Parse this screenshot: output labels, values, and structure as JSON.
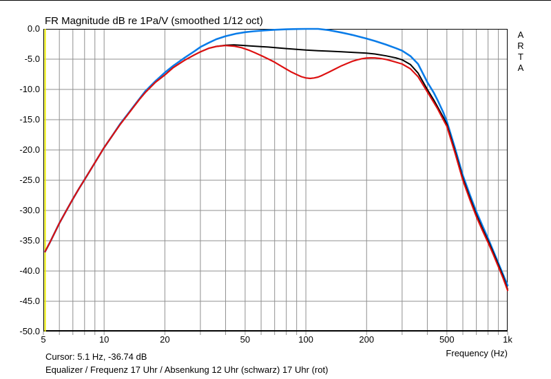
{
  "title": "FR Magnitude dB re 1Pa/V (smoothed 1/12 oct)",
  "branding": {
    "name": "ARTA",
    "letters": [
      "A",
      "R",
      "T",
      "A"
    ]
  },
  "status": {
    "cursor": "Cursor: 5.1 Hz, -36.74 dB"
  },
  "caption": "Equalizer / Frequenz 17 Uhr / Absenkung 12 Uhr (schwarz) 17 Uhr (rot)",
  "colors": {
    "background": "#ffffff",
    "grid": "#8f8f8f",
    "border": "#000000",
    "cursor": "#efef00",
    "blue": "#0a7ce8",
    "black": "#000000",
    "red": "#dd1111"
  },
  "axes": {
    "x": {
      "label": "Frequency (Hz)",
      "scale": "log",
      "min": 5,
      "max": 1000,
      "major_ticks": [
        {
          "f": 5,
          "label": "5"
        },
        {
          "f": 10,
          "label": "10"
        },
        {
          "f": 20,
          "label": "20"
        },
        {
          "f": 50,
          "label": "50"
        },
        {
          "f": 100,
          "label": "100"
        },
        {
          "f": 200,
          "label": "200"
        },
        {
          "f": 500,
          "label": "500"
        },
        {
          "f": 1000,
          "label": "1k"
        }
      ],
      "minor_ticks": [
        6,
        7,
        8,
        9,
        30,
        40,
        60,
        70,
        80,
        90,
        300,
        400,
        600,
        700,
        800,
        900
      ]
    },
    "y": {
      "unit": "dB",
      "min": -50,
      "max": 0,
      "step": 5,
      "ticks": [
        {
          "v": 0,
          "label": "0.0"
        },
        {
          "v": -5,
          "label": "-5.0"
        },
        {
          "v": -10,
          "label": "-10.0"
        },
        {
          "v": -15,
          "label": "-15.0"
        },
        {
          "v": -20,
          "label": "-20.0"
        },
        {
          "v": -25,
          "label": "-25.0"
        },
        {
          "v": -30,
          "label": "-30.0"
        },
        {
          "v": -35,
          "label": "-35.0"
        },
        {
          "v": -40,
          "label": "-40.0"
        },
        {
          "v": -45,
          "label": "-45.0"
        },
        {
          "v": -50,
          "label": "-50.0"
        }
      ]
    }
  },
  "chart_data": {
    "type": "line",
    "title": "FR Magnitude dB re 1Pa/V (smoothed 1/12 oct)",
    "xlabel": "Frequency (Hz)",
    "ylabel": "dB",
    "x_scale": "log",
    "xlim": [
      5,
      1000
    ],
    "ylim": [
      -50,
      0
    ],
    "grid": true,
    "cursor": {
      "x": 5.1,
      "y": -36.74
    },
    "series": [
      {
        "name": "blue-curve (Equalizer Frequenz 17 Uhr, ohne Absenkung)",
        "color": "#0a7ce8",
        "width": 2.6,
        "points": [
          [
            5.1,
            -36.8
          ],
          [
            5.4,
            -35.2
          ],
          [
            6,
            -32.1
          ],
          [
            6.5,
            -30.0
          ],
          [
            7,
            -28.1
          ],
          [
            7.5,
            -26.4
          ],
          [
            8,
            -24.9
          ],
          [
            9,
            -22.1
          ],
          [
            10,
            -19.6
          ],
          [
            11,
            -17.6
          ],
          [
            12,
            -15.7
          ],
          [
            13,
            -14.2
          ],
          [
            14,
            -12.8
          ],
          [
            15,
            -11.5
          ],
          [
            16,
            -10.3
          ],
          [
            18,
            -8.6
          ],
          [
            20,
            -7.2
          ],
          [
            22,
            -6.1
          ],
          [
            25,
            -4.8
          ],
          [
            28,
            -3.7
          ],
          [
            30,
            -3.0
          ],
          [
            33,
            -2.3
          ],
          [
            36,
            -1.7
          ],
          [
            40,
            -1.2
          ],
          [
            45,
            -0.8
          ],
          [
            50,
            -0.55
          ],
          [
            55,
            -0.4
          ],
          [
            60,
            -0.3
          ],
          [
            70,
            -0.15
          ],
          [
            80,
            -0.07
          ],
          [
            90,
            -0.02
          ],
          [
            100,
            0
          ],
          [
            115,
            0
          ],
          [
            130,
            -0.2
          ],
          [
            150,
            -0.6
          ],
          [
            170,
            -1.0
          ],
          [
            200,
            -1.6
          ],
          [
            220,
            -2.0
          ],
          [
            250,
            -2.6
          ],
          [
            280,
            -3.2
          ],
          [
            300,
            -3.6
          ],
          [
            330,
            -4.5
          ],
          [
            360,
            -5.8
          ],
          [
            400,
            -8.8
          ],
          [
            430,
            -10.5
          ],
          [
            450,
            -11.8
          ],
          [
            480,
            -13.8
          ],
          [
            500,
            -15.3
          ],
          [
            550,
            -19.8
          ],
          [
            600,
            -24.2
          ],
          [
            650,
            -27.4
          ],
          [
            700,
            -30.2
          ],
          [
            750,
            -32.5
          ],
          [
            800,
            -34.6
          ],
          [
            850,
            -36.7
          ],
          [
            900,
            -38.7
          ],
          [
            950,
            -40.6
          ],
          [
            1000,
            -42.4
          ]
        ]
      },
      {
        "name": "black-curve (Absenkung 12 Uhr, schwarz)",
        "color": "#000000",
        "width": 2.0,
        "points": [
          [
            5.1,
            -36.8
          ],
          [
            5.4,
            -35.2
          ],
          [
            6,
            -32.1
          ],
          [
            6.5,
            -30.0
          ],
          [
            7,
            -28.1
          ],
          [
            7.5,
            -26.4
          ],
          [
            8,
            -24.9
          ],
          [
            9,
            -22.1
          ],
          [
            10,
            -19.6
          ],
          [
            11,
            -17.6
          ],
          [
            12,
            -15.8
          ],
          [
            13,
            -14.3
          ],
          [
            14,
            -12.9
          ],
          [
            15,
            -11.6
          ],
          [
            16,
            -10.5
          ],
          [
            18,
            -8.8
          ],
          [
            20,
            -7.6
          ],
          [
            22,
            -6.4
          ],
          [
            25,
            -5.2
          ],
          [
            28,
            -4.3
          ],
          [
            30,
            -3.8
          ],
          [
            33,
            -3.2
          ],
          [
            36,
            -2.9
          ],
          [
            40,
            -2.7
          ],
          [
            44,
            -2.65
          ],
          [
            48,
            -2.72
          ],
          [
            52,
            -2.8
          ],
          [
            58,
            -2.9
          ],
          [
            65,
            -3.0
          ],
          [
            72,
            -3.12
          ],
          [
            80,
            -3.25
          ],
          [
            90,
            -3.38
          ],
          [
            100,
            -3.5
          ],
          [
            115,
            -3.6
          ],
          [
            130,
            -3.68
          ],
          [
            150,
            -3.78
          ],
          [
            170,
            -3.88
          ],
          [
            200,
            -4.0
          ],
          [
            220,
            -4.15
          ],
          [
            250,
            -4.45
          ],
          [
            280,
            -4.8
          ],
          [
            300,
            -5.1
          ],
          [
            330,
            -5.9
          ],
          [
            360,
            -7.3
          ],
          [
            400,
            -10.0
          ],
          [
            430,
            -11.7
          ],
          [
            450,
            -12.9
          ],
          [
            480,
            -14.6
          ],
          [
            500,
            -15.8
          ],
          [
            550,
            -20.3
          ],
          [
            600,
            -24.7
          ],
          [
            650,
            -27.9
          ],
          [
            700,
            -30.7
          ],
          [
            750,
            -33.0
          ],
          [
            800,
            -35.0
          ],
          [
            850,
            -37.0
          ],
          [
            900,
            -39.0
          ],
          [
            950,
            -40.9
          ],
          [
            1000,
            -43.0
          ]
        ]
      },
      {
        "name": "red-curve (Absenkung 17 Uhr, rot)",
        "color": "#dd1111",
        "width": 2.2,
        "points": [
          [
            5.1,
            -36.8
          ],
          [
            5.4,
            -35.2
          ],
          [
            6,
            -32.1
          ],
          [
            6.5,
            -30.0
          ],
          [
            7,
            -28.1
          ],
          [
            7.5,
            -26.4
          ],
          [
            8,
            -24.9
          ],
          [
            9,
            -22.1
          ],
          [
            10,
            -19.6
          ],
          [
            11,
            -17.6
          ],
          [
            12,
            -15.8
          ],
          [
            13,
            -14.3
          ],
          [
            14,
            -12.9
          ],
          [
            15,
            -11.6
          ],
          [
            16,
            -10.5
          ],
          [
            18,
            -8.8
          ],
          [
            20,
            -7.6
          ],
          [
            22,
            -6.4
          ],
          [
            25,
            -5.2
          ],
          [
            28,
            -4.3
          ],
          [
            30,
            -3.8
          ],
          [
            33,
            -3.2
          ],
          [
            36,
            -2.9
          ],
          [
            40,
            -2.75
          ],
          [
            44,
            -2.85
          ],
          [
            48,
            -3.1
          ],
          [
            52,
            -3.5
          ],
          [
            56,
            -3.95
          ],
          [
            60,
            -4.4
          ],
          [
            65,
            -4.95
          ],
          [
            70,
            -5.5
          ],
          [
            75,
            -6.1
          ],
          [
            80,
            -6.65
          ],
          [
            85,
            -7.15
          ],
          [
            90,
            -7.55
          ],
          [
            95,
            -7.9
          ],
          [
            100,
            -8.1
          ],
          [
            105,
            -8.18
          ],
          [
            110,
            -8.1
          ],
          [
            115,
            -7.95
          ],
          [
            120,
            -7.7
          ],
          [
            130,
            -7.15
          ],
          [
            140,
            -6.6
          ],
          [
            150,
            -6.1
          ],
          [
            160,
            -5.7
          ],
          [
            170,
            -5.35
          ],
          [
            180,
            -5.1
          ],
          [
            190,
            -4.92
          ],
          [
            200,
            -4.82
          ],
          [
            210,
            -4.78
          ],
          [
            220,
            -4.8
          ],
          [
            235,
            -4.9
          ],
          [
            250,
            -5.05
          ],
          [
            270,
            -5.35
          ],
          [
            300,
            -5.8
          ],
          [
            330,
            -6.6
          ],
          [
            360,
            -7.9
          ],
          [
            400,
            -10.4
          ],
          [
            430,
            -12.1
          ],
          [
            450,
            -13.2
          ],
          [
            480,
            -15.0
          ],
          [
            500,
            -16.1
          ],
          [
            550,
            -20.6
          ],
          [
            600,
            -25.0
          ],
          [
            650,
            -28.2
          ],
          [
            700,
            -31.0
          ],
          [
            750,
            -33.3
          ],
          [
            800,
            -35.3
          ],
          [
            850,
            -37.3
          ],
          [
            900,
            -39.3
          ],
          [
            950,
            -41.2
          ],
          [
            1000,
            -43.2
          ]
        ]
      }
    ]
  }
}
